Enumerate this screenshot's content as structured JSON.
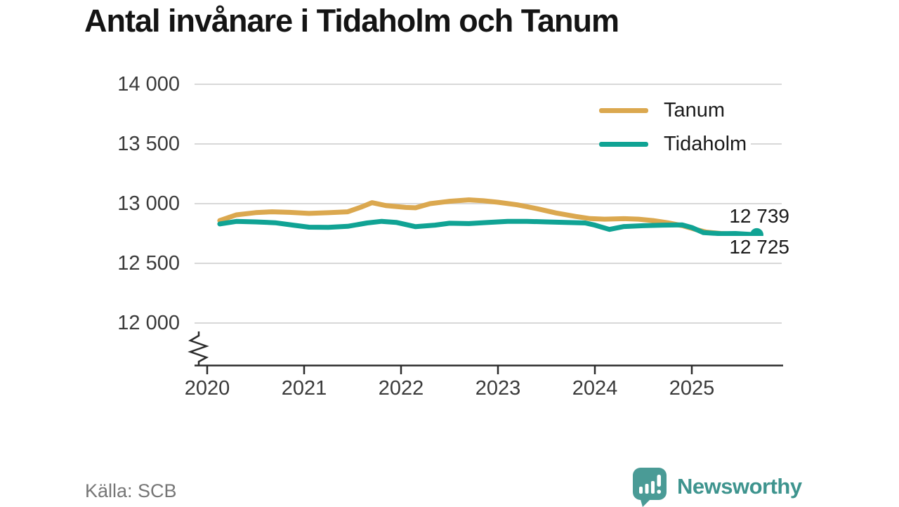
{
  "source_label": "Källa: SCB",
  "branding": {
    "name": "Newsworthy"
  },
  "chart_data": {
    "type": "line",
    "title": "Antal invånare i Tidaholm och Tanum",
    "xlabel": "",
    "ylabel": "",
    "legend_position": "top-right",
    "grid": "horizontal",
    "axis_break_bottom_left": true,
    "ylim": [
      11850,
      14000
    ],
    "xlim": [
      2020,
      2025.95
    ],
    "y_axis": {
      "ticks": [
        {
          "value": 14000,
          "label": "14 000"
        },
        {
          "value": 13500,
          "label": "13 500"
        },
        {
          "value": 13000,
          "label": "13 000"
        },
        {
          "value": 12500,
          "label": "12 500"
        },
        {
          "value": 12000,
          "label": "12 000"
        }
      ]
    },
    "x_axis": {
      "ticks": [
        {
          "value": 2020,
          "label": "2020"
        },
        {
          "value": 2021,
          "label": "2021"
        },
        {
          "value": 2022,
          "label": "2022"
        },
        {
          "value": 2023,
          "label": "2023"
        },
        {
          "value": 2024,
          "label": "2024"
        },
        {
          "value": 2025,
          "label": "2025"
        }
      ]
    },
    "colors": {
      "grid": "#d8d8d8",
      "axis": "#2b2b2b",
      "tanum": "#dba84f",
      "tidaholm": "#10a394"
    },
    "series": [
      {
        "name": "Tanum",
        "color": "#dba84f",
        "end_marker": false,
        "end_value": 12725,
        "points": [
          [
            2020.13,
            12858
          ],
          [
            2020.3,
            12906
          ],
          [
            2020.5,
            12925
          ],
          [
            2020.67,
            12932
          ],
          [
            2020.85,
            12927
          ],
          [
            2021.05,
            12918
          ],
          [
            2021.25,
            12924
          ],
          [
            2021.45,
            12932
          ],
          [
            2021.6,
            12975
          ],
          [
            2021.7,
            13008
          ],
          [
            2021.85,
            12983
          ],
          [
            2022.05,
            12968
          ],
          [
            2022.15,
            12965
          ],
          [
            2022.3,
            13000
          ],
          [
            2022.5,
            13020
          ],
          [
            2022.7,
            13032
          ],
          [
            2022.85,
            13024
          ],
          [
            2023.0,
            13012
          ],
          [
            2023.2,
            12990
          ],
          [
            2023.4,
            12958
          ],
          [
            2023.6,
            12922
          ],
          [
            2023.8,
            12893
          ],
          [
            2023.95,
            12875
          ],
          [
            2024.1,
            12870
          ],
          [
            2024.3,
            12874
          ],
          [
            2024.45,
            12870
          ],
          [
            2024.6,
            12858
          ],
          [
            2024.75,
            12840
          ],
          [
            2024.9,
            12816
          ],
          [
            2025.05,
            12782
          ],
          [
            2025.15,
            12762
          ],
          [
            2025.3,
            12750
          ],
          [
            2025.5,
            12742
          ],
          [
            2025.67,
            12725
          ]
        ]
      },
      {
        "name": "Tidaholm",
        "color": "#10a394",
        "end_marker": true,
        "end_value": 12739,
        "points": [
          [
            2020.13,
            12830
          ],
          [
            2020.3,
            12851
          ],
          [
            2020.5,
            12847
          ],
          [
            2020.7,
            12840
          ],
          [
            2020.9,
            12818
          ],
          [
            2021.05,
            12803
          ],
          [
            2021.25,
            12801
          ],
          [
            2021.45,
            12810
          ],
          [
            2021.65,
            12838
          ],
          [
            2021.8,
            12852
          ],
          [
            2021.95,
            12843
          ],
          [
            2022.15,
            12807
          ],
          [
            2022.35,
            12820
          ],
          [
            2022.5,
            12836
          ],
          [
            2022.7,
            12833
          ],
          [
            2022.9,
            12843
          ],
          [
            2023.1,
            12851
          ],
          [
            2023.3,
            12852
          ],
          [
            2023.5,
            12847
          ],
          [
            2023.7,
            12843
          ],
          [
            2023.9,
            12838
          ],
          [
            2024.0,
            12820
          ],
          [
            2024.15,
            12784
          ],
          [
            2024.3,
            12808
          ],
          [
            2024.5,
            12815
          ],
          [
            2024.7,
            12820
          ],
          [
            2024.9,
            12822
          ],
          [
            2025.0,
            12800
          ],
          [
            2025.12,
            12757
          ],
          [
            2025.3,
            12748
          ],
          [
            2025.45,
            12750
          ],
          [
            2025.67,
            12739
          ]
        ]
      }
    ],
    "end_labels": [
      {
        "series": "Tidaholm",
        "text": "12 739"
      },
      {
        "series": "Tanum",
        "text": "12 725"
      }
    ]
  }
}
